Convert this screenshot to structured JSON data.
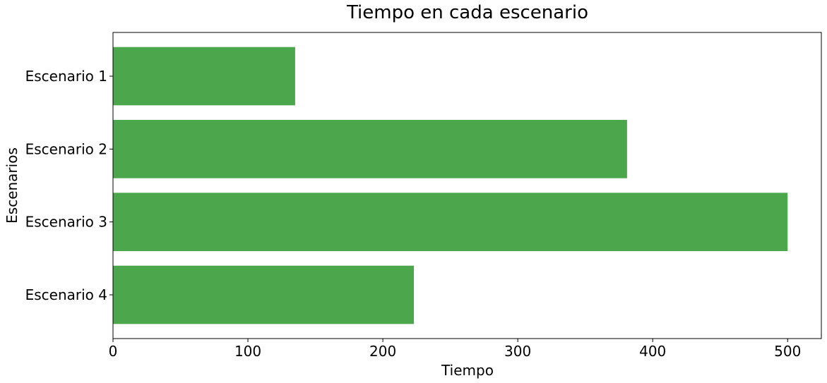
{
  "chart_data": {
    "type": "bar",
    "orientation": "horizontal",
    "title": "Tiempo en cada escenario",
    "xlabel": "Tiempo",
    "ylabel": "Escenarios",
    "categories": [
      "Escenario 1",
      "Escenario 2",
      "Escenario 3",
      "Escenario 4"
    ],
    "values": [
      135,
      381,
      500,
      223
    ],
    "xlim": [
      0,
      525
    ],
    "xticks": [
      0,
      100,
      200,
      300,
      400,
      500
    ],
    "grid": false,
    "bar_color": "#4ca64c"
  }
}
